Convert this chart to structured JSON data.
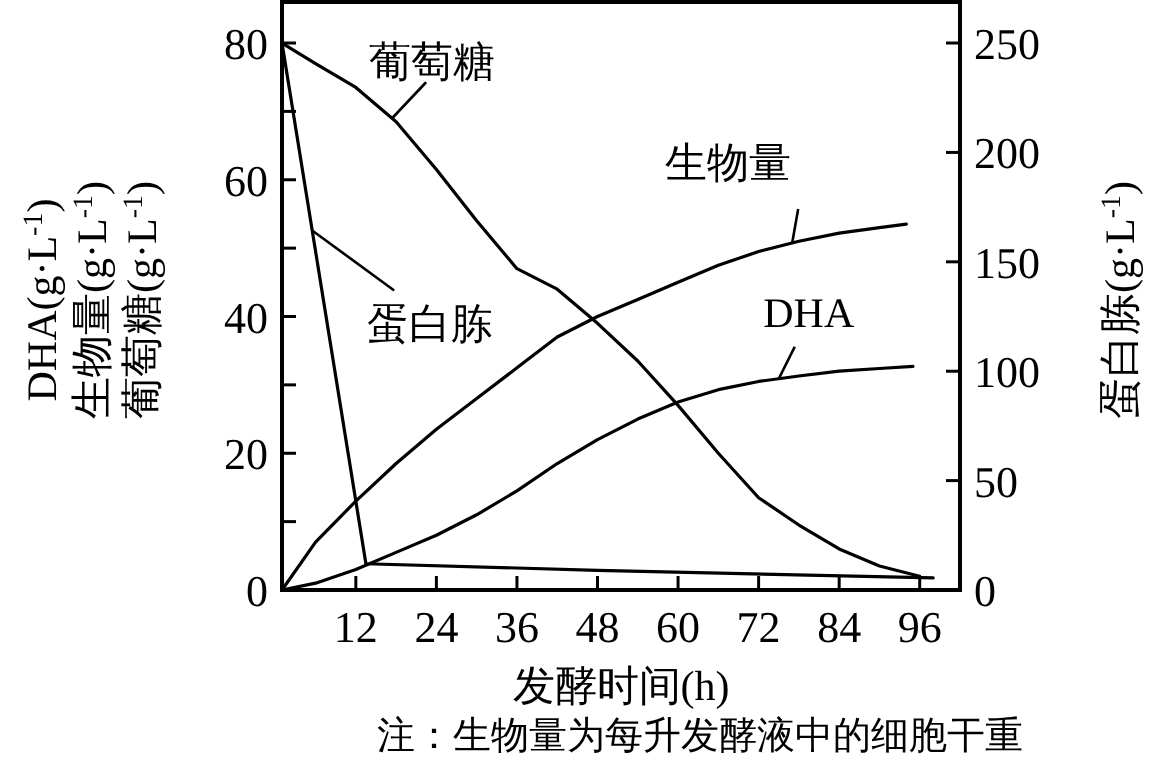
{
  "chart_data": {
    "type": "line",
    "xlabel": "发酵时间(h)",
    "ylabel": "DHA(g·L$^{-1}$)\n生物量(g·L$^{-1}$)\n葡萄糖(g·L$^{-1}$)",
    "y2label": "蛋白胨(g·L$^{-1}$)",
    "annotations": [
      "注：生物量为每升发酵液中的细胞干重"
    ],
    "xlim": [
      1,
      102
    ],
    "xticks": [
      12,
      24,
      36,
      48,
      60,
      72,
      84,
      96
    ],
    "ylim": [
      0,
      86
    ],
    "yticks": [
      0,
      {
        "value": 10,
        "label": null
      },
      20,
      {
        "value": 30,
        "label": null
      },
      40,
      {
        "value": 50,
        "label": null
      },
      60,
      {
        "value": 70,
        "label": null
      },
      80
    ],
    "y2lim": [
      0,
      268.75
    ],
    "y2ticks": [
      0,
      50,
      100,
      150,
      200,
      250
    ],
    "marker": "none",
    "line_style": "solid",
    "series": [
      {
        "name": "葡萄糖",
        "color": "#000000",
        "x": [
          1,
          6,
          12,
          18,
          24,
          30,
          36,
          42,
          48,
          54,
          60,
          66,
          72,
          78,
          84,
          90,
          96
        ],
        "values": [
          80,
          77,
          73.5,
          68.5,
          61.5,
          54,
          47,
          44,
          39,
          33.5,
          27,
          20,
          13.5,
          9.5,
          6,
          3.5,
          2
        ]
      },
      {
        "name": "蛋白胨",
        "color": "#000000",
        "axis": "y2",
        "x": [
          1,
          13.5,
          48,
          98
        ],
        "values": [
          250,
          12,
          9,
          5.5
        ]
      },
      {
        "name": "生物量",
        "color": "#000000",
        "x": [
          1,
          6,
          12,
          18,
          24,
          30,
          36,
          42,
          48,
          54,
          60,
          66,
          72,
          78,
          84,
          90,
          94
        ],
        "values": [
          0,
          7,
          13,
          18.5,
          23.5,
          28,
          32.5,
          37,
          40,
          42.5,
          45,
          47.5,
          49.5,
          51,
          52.2,
          53,
          53.5
        ]
      },
      {
        "name": "DHA",
        "color": "#000000",
        "x": [
          1,
          6,
          12,
          18,
          24,
          30,
          36,
          42,
          48,
          54,
          60,
          66,
          72,
          78,
          84,
          90,
          95
        ],
        "values": [
          0,
          1,
          3,
          5.5,
          8,
          11,
          14.5,
          18.5,
          22,
          25,
          27.5,
          29.3,
          30.5,
          31.3,
          32,
          32.4,
          32.7
        ]
      }
    ]
  }
}
